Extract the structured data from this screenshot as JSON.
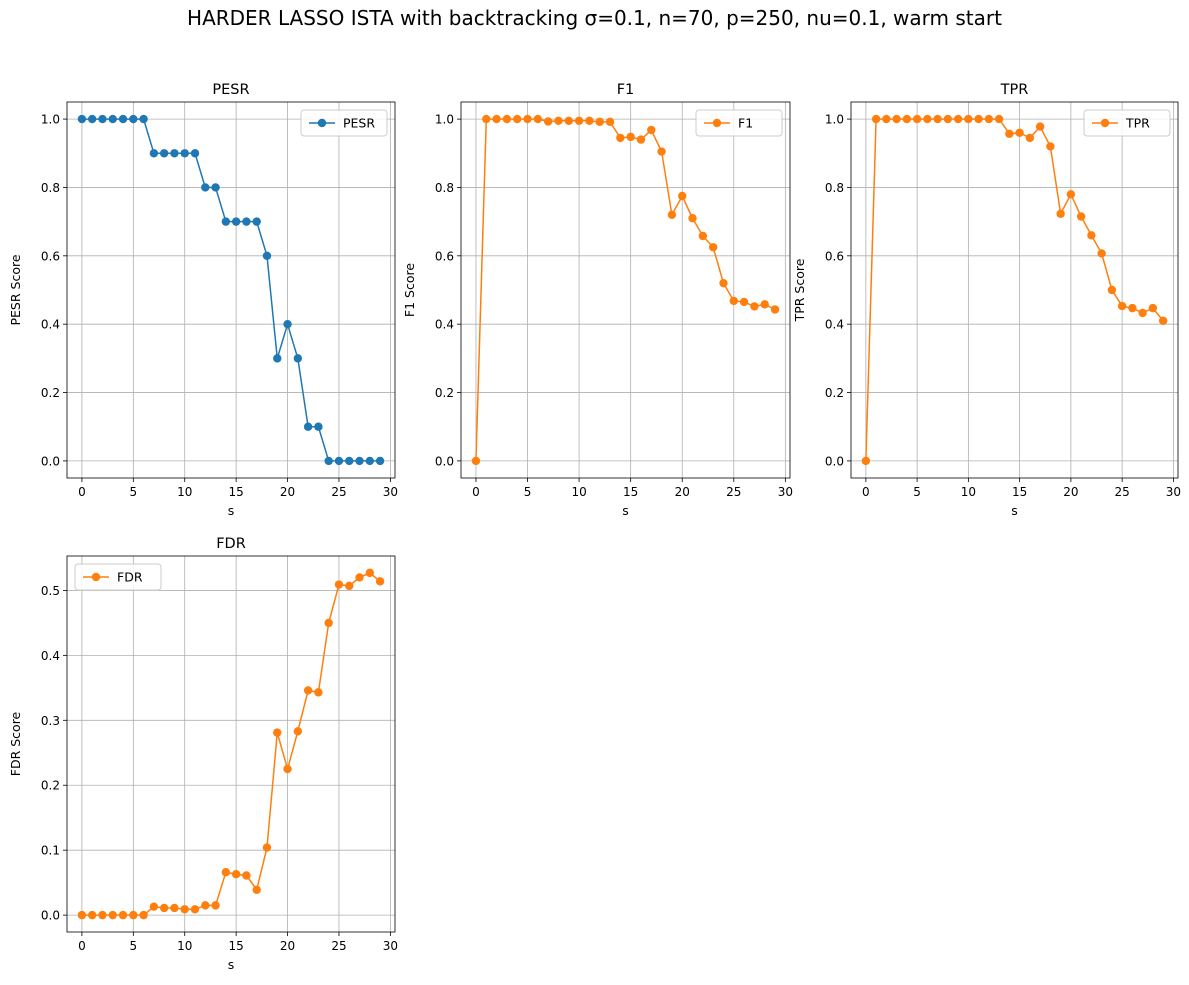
{
  "figure": {
    "title": "HARDER LASSO ISTA with backtracking σ=0.1, n=70, p=250, nu=0.1, warm start"
  },
  "colors": {
    "blue": "#1f77b4",
    "orange": "#ff7f0e",
    "grid": "#b0b0b0"
  },
  "chart_data": [
    {
      "type": "line",
      "title": "PESR",
      "xlabel": "s",
      "ylabel": "PESR Score",
      "xlim": [
        -1.45,
        30.45
      ],
      "ylim": [
        -0.05,
        1.05
      ],
      "xticks": [
        0,
        5,
        10,
        15,
        20,
        25,
        30
      ],
      "yticks": [
        0.0,
        0.2,
        0.4,
        0.6,
        0.8,
        1.0
      ],
      "grid": true,
      "legend_position": "upper right",
      "series": [
        {
          "name": "PESR",
          "color": "#1f77b4",
          "x": [
            0,
            1,
            2,
            3,
            4,
            5,
            6,
            7,
            8,
            9,
            10,
            11,
            12,
            13,
            14,
            15,
            16,
            17,
            18,
            19,
            20,
            21,
            22,
            23,
            24,
            25,
            26,
            27,
            28,
            29
          ],
          "y": [
            1.0,
            1.0,
            1.0,
            1.0,
            1.0,
            1.0,
            1.0,
            0.9,
            0.9,
            0.9,
            0.9,
            0.9,
            0.8,
            0.8,
            0.7,
            0.7,
            0.7,
            0.7,
            0.6,
            0.3,
            0.4,
            0.3,
            0.1,
            0.1,
            0.0,
            0.0,
            0.0,
            0.0,
            0.0,
            0.0
          ]
        }
      ]
    },
    {
      "type": "line",
      "title": "F1",
      "xlabel": "s",
      "ylabel": "F1 Score",
      "xlim": [
        -1.45,
        30.45
      ],
      "ylim": [
        -0.05,
        1.05
      ],
      "xticks": [
        0,
        5,
        10,
        15,
        20,
        25,
        30
      ],
      "yticks": [
        0.0,
        0.2,
        0.4,
        0.6,
        0.8,
        1.0
      ],
      "grid": true,
      "legend_position": "upper right",
      "series": [
        {
          "name": "F1",
          "color": "#ff7f0e",
          "x": [
            0,
            1,
            2,
            3,
            4,
            5,
            6,
            7,
            8,
            9,
            10,
            11,
            12,
            13,
            14,
            15,
            16,
            17,
            18,
            19,
            20,
            21,
            22,
            23,
            24,
            25,
            26,
            27,
            28,
            29
          ],
          "y": [
            0.0,
            1.0,
            1.0,
            1.0,
            1.0,
            1.0,
            1.0,
            0.993,
            0.995,
            0.995,
            0.995,
            0.995,
            0.992,
            0.992,
            0.945,
            0.948,
            0.94,
            0.968,
            0.905,
            0.72,
            0.775,
            0.71,
            0.658,
            0.625,
            0.52,
            0.468,
            0.465,
            0.452,
            0.458,
            0.443
          ]
        }
      ]
    },
    {
      "type": "line",
      "title": "TPR",
      "xlabel": "s",
      "ylabel": "TPR Score",
      "xlim": [
        -1.45,
        30.45
      ],
      "ylim": [
        -0.05,
        1.05
      ],
      "xticks": [
        0,
        5,
        10,
        15,
        20,
        25,
        30
      ],
      "yticks": [
        0.0,
        0.2,
        0.4,
        0.6,
        0.8,
        1.0
      ],
      "grid": true,
      "legend_position": "upper right",
      "series": [
        {
          "name": "TPR",
          "color": "#ff7f0e",
          "x": [
            0,
            1,
            2,
            3,
            4,
            5,
            6,
            7,
            8,
            9,
            10,
            11,
            12,
            13,
            14,
            15,
            16,
            17,
            18,
            19,
            20,
            21,
            22,
            23,
            24,
            25,
            26,
            27,
            28,
            29
          ],
          "y": [
            0.0,
            1.0,
            1.0,
            1.0,
            1.0,
            1.0,
            1.0,
            1.0,
            1.0,
            1.0,
            1.0,
            1.0,
            1.0,
            1.0,
            0.957,
            0.96,
            0.945,
            0.978,
            0.92,
            0.723,
            0.78,
            0.715,
            0.66,
            0.607,
            0.5,
            0.453,
            0.447,
            0.433,
            0.447,
            0.41
          ]
        }
      ]
    },
    {
      "type": "line",
      "title": "FDR",
      "xlabel": "s",
      "ylabel": "FDR Score",
      "xlim": [
        -1.45,
        30.45
      ],
      "ylim": [
        -0.026,
        0.553
      ],
      "xticks": [
        0,
        5,
        10,
        15,
        20,
        25,
        30
      ],
      "yticks": [
        0.0,
        0.1,
        0.2,
        0.3,
        0.4,
        0.5
      ],
      "grid": true,
      "legend_position": "upper left",
      "series": [
        {
          "name": "FDR",
          "color": "#ff7f0e",
          "x": [
            0,
            1,
            2,
            3,
            4,
            5,
            6,
            7,
            8,
            9,
            10,
            11,
            12,
            13,
            14,
            15,
            16,
            17,
            18,
            19,
            20,
            21,
            22,
            23,
            24,
            25,
            26,
            27,
            28,
            29
          ],
          "y": [
            0.0,
            0.0,
            0.0,
            0.0,
            0.0,
            0.0,
            0.0,
            0.013,
            0.011,
            0.011,
            0.009,
            0.009,
            0.015,
            0.015,
            0.066,
            0.063,
            0.061,
            0.039,
            0.104,
            0.281,
            0.225,
            0.283,
            0.346,
            0.343,
            0.45,
            0.509,
            0.507,
            0.52,
            0.527,
            0.514
          ]
        }
      ]
    }
  ]
}
